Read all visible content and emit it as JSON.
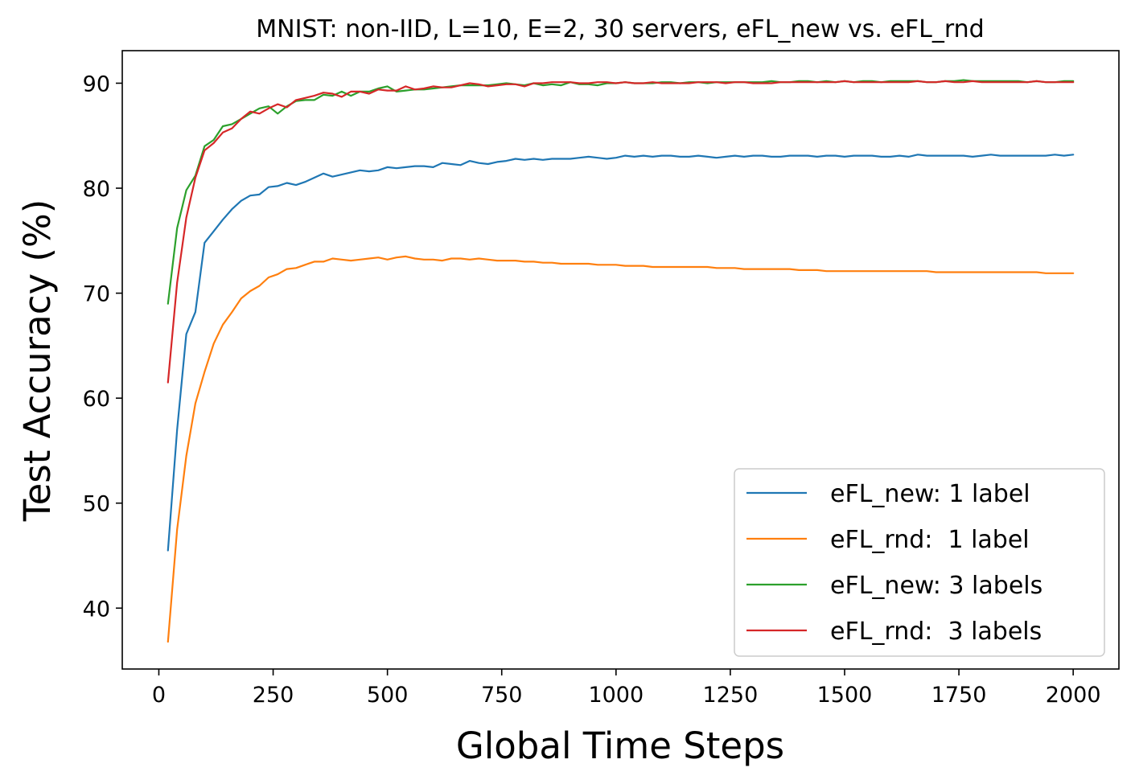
{
  "chart_data": {
    "type": "line",
    "title": "MNIST: non-IID, L=10, E=2, 30 servers, eFL_new vs. eFL_rnd",
    "xlabel": "Global Time Steps",
    "ylabel": "Test Accuracy (%)",
    "xlim": [
      -80,
      2100
    ],
    "ylim": [
      34.2,
      93.1
    ],
    "xticks": [
      0,
      250,
      500,
      750,
      1000,
      1250,
      1500,
      1750,
      2000
    ],
    "yticks": [
      40,
      50,
      60,
      70,
      80,
      90
    ],
    "legend_position": "lower-right",
    "x": [
      20,
      40,
      60,
      80,
      100,
      120,
      140,
      160,
      180,
      200,
      220,
      240,
      260,
      280,
      300,
      320,
      340,
      360,
      380,
      400,
      420,
      440,
      460,
      480,
      500,
      520,
      540,
      560,
      580,
      600,
      620,
      640,
      660,
      680,
      700,
      720,
      740,
      760,
      780,
      800,
      820,
      840,
      860,
      880,
      900,
      920,
      940,
      960,
      980,
      1000,
      1020,
      1040,
      1060,
      1080,
      1100,
      1120,
      1140,
      1160,
      1180,
      1200,
      1220,
      1240,
      1260,
      1280,
      1300,
      1320,
      1340,
      1360,
      1380,
      1400,
      1420,
      1440,
      1460,
      1480,
      1500,
      1520,
      1540,
      1560,
      1580,
      1600,
      1620,
      1640,
      1660,
      1680,
      1700,
      1720,
      1740,
      1760,
      1780,
      1800,
      1820,
      1840,
      1860,
      1880,
      1900,
      1920,
      1940,
      1960,
      1980,
      2000
    ],
    "series": [
      {
        "name": "eFL_new: 1 label",
        "color": "#1f77b4",
        "values": [
          45.5,
          57.0,
          66.1,
          68.2,
          74.8,
          75.9,
          77.0,
          78.0,
          78.8,
          79.3,
          79.4,
          80.1,
          80.2,
          80.5,
          80.3,
          80.6,
          81.0,
          81.4,
          81.1,
          81.3,
          81.5,
          81.7,
          81.6,
          81.7,
          82.0,
          81.9,
          82.0,
          82.1,
          82.1,
          82.0,
          82.4,
          82.3,
          82.2,
          82.6,
          82.4,
          82.3,
          82.5,
          82.6,
          82.8,
          82.7,
          82.8,
          82.7,
          82.8,
          82.8,
          82.8,
          82.9,
          83.0,
          82.9,
          82.8,
          82.9,
          83.1,
          83.0,
          83.1,
          83.0,
          83.1,
          83.1,
          83.0,
          83.0,
          83.1,
          83.0,
          82.9,
          83.0,
          83.1,
          83.0,
          83.1,
          83.1,
          83.0,
          83.0,
          83.1,
          83.1,
          83.1,
          83.0,
          83.1,
          83.1,
          83.0,
          83.1,
          83.1,
          83.1,
          83.0,
          83.0,
          83.1,
          83.0,
          83.2,
          83.1,
          83.1,
          83.1,
          83.1,
          83.1,
          83.0,
          83.1,
          83.2,
          83.1,
          83.1,
          83.1,
          83.1,
          83.1,
          83.1,
          83.2,
          83.1,
          83.2
        ]
      },
      {
        "name": "eFL_rnd:  1 label",
        "color": "#ff7f0e",
        "values": [
          36.8,
          47.5,
          54.5,
          59.5,
          62.5,
          65.2,
          67.0,
          68.2,
          69.5,
          70.2,
          70.7,
          71.5,
          71.8,
          72.3,
          72.4,
          72.7,
          73.0,
          73.0,
          73.3,
          73.2,
          73.1,
          73.2,
          73.3,
          73.4,
          73.2,
          73.4,
          73.5,
          73.3,
          73.2,
          73.2,
          73.1,
          73.3,
          73.3,
          73.2,
          73.3,
          73.2,
          73.1,
          73.1,
          73.1,
          73.0,
          73.0,
          72.9,
          72.9,
          72.8,
          72.8,
          72.8,
          72.8,
          72.7,
          72.7,
          72.7,
          72.6,
          72.6,
          72.6,
          72.5,
          72.5,
          72.5,
          72.5,
          72.5,
          72.5,
          72.5,
          72.4,
          72.4,
          72.4,
          72.3,
          72.3,
          72.3,
          72.3,
          72.3,
          72.3,
          72.2,
          72.2,
          72.2,
          72.1,
          72.1,
          72.1,
          72.1,
          72.1,
          72.1,
          72.1,
          72.1,
          72.1,
          72.1,
          72.1,
          72.1,
          72.0,
          72.0,
          72.0,
          72.0,
          72.0,
          72.0,
          72.0,
          72.0,
          72.0,
          72.0,
          72.0,
          72.0,
          71.9,
          71.9,
          71.9,
          71.9
        ]
      },
      {
        "name": "eFL_new: 3 labels",
        "color": "#2ca02c",
        "values": [
          69.0,
          76.2,
          79.8,
          81.2,
          84.0,
          84.6,
          85.9,
          86.1,
          86.6,
          87.1,
          87.6,
          87.8,
          87.1,
          87.8,
          88.3,
          88.4,
          88.4,
          88.9,
          88.8,
          89.2,
          88.8,
          89.2,
          89.2,
          89.5,
          89.7,
          89.2,
          89.3,
          89.4,
          89.4,
          89.5,
          89.6,
          89.7,
          89.8,
          89.8,
          89.8,
          89.8,
          89.9,
          90.0,
          89.9,
          89.8,
          90.0,
          89.8,
          89.9,
          89.8,
          90.1,
          89.9,
          89.9,
          89.8,
          90.0,
          90.0,
          90.1,
          90.0,
          90.0,
          90.0,
          90.1,
          90.1,
          90.0,
          90.1,
          90.1,
          90.0,
          90.1,
          90.1,
          90.1,
          90.1,
          90.1,
          90.1,
          90.2,
          90.1,
          90.1,
          90.2,
          90.2,
          90.1,
          90.2,
          90.1,
          90.2,
          90.1,
          90.2,
          90.2,
          90.1,
          90.2,
          90.2,
          90.2,
          90.2,
          90.1,
          90.1,
          90.2,
          90.2,
          90.3,
          90.2,
          90.2,
          90.2,
          90.2,
          90.2,
          90.2,
          90.1,
          90.2,
          90.1,
          90.1,
          90.2,
          90.2
        ]
      },
      {
        "name": "eFL_rnd:  3 labels",
        "color": "#d62728",
        "values": [
          61.5,
          71.0,
          77.2,
          81.0,
          83.6,
          84.3,
          85.3,
          85.7,
          86.6,
          87.3,
          87.1,
          87.6,
          88.0,
          87.7,
          88.4,
          88.6,
          88.8,
          89.1,
          89.0,
          88.7,
          89.2,
          89.2,
          89.0,
          89.4,
          89.3,
          89.3,
          89.7,
          89.4,
          89.5,
          89.7,
          89.6,
          89.6,
          89.8,
          90.0,
          89.9,
          89.7,
          89.8,
          89.9,
          89.9,
          89.7,
          90.0,
          90.0,
          90.1,
          90.1,
          90.1,
          90.0,
          90.0,
          90.1,
          90.1,
          90.0,
          90.1,
          90.0,
          90.0,
          90.1,
          90.0,
          90.0,
          90.0,
          90.0,
          90.1,
          90.1,
          90.1,
          90.0,
          90.1,
          90.1,
          90.0,
          90.0,
          90.0,
          90.1,
          90.1,
          90.1,
          90.1,
          90.1,
          90.1,
          90.1,
          90.2,
          90.1,
          90.1,
          90.1,
          90.1,
          90.1,
          90.1,
          90.1,
          90.2,
          90.1,
          90.1,
          90.2,
          90.1,
          90.1,
          90.2,
          90.1,
          90.1,
          90.1,
          90.1,
          90.1,
          90.1,
          90.2,
          90.1,
          90.1,
          90.1,
          90.1
        ]
      }
    ]
  }
}
